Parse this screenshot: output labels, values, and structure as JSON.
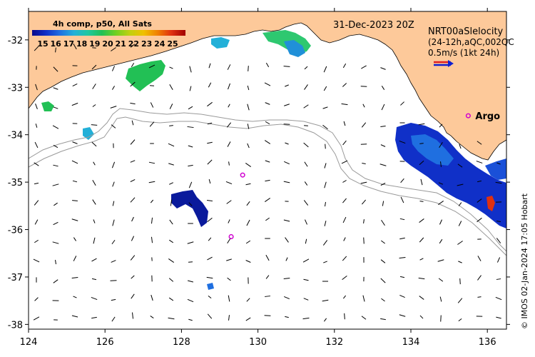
{
  "map": {
    "date_label": "31-Dec-2023 20Z",
    "legend_title": "4h comp, p50, All Sats",
    "legend_ticks": [
      "15",
      "16",
      "17",
      "18",
      "19",
      "20",
      "21",
      "22",
      "23",
      "24",
      "25"
    ],
    "product_label_a": "NRT00aSlelocity",
    "product_label_b": "(24-12h,aQC,002QC",
    "scale_label": "0.5m/s (1kt 24h)",
    "argo_label": "Argo",
    "credit": "© IMOS 02-Jan-2024 17:05 Hobart",
    "lat_ticks": [
      -32,
      -33,
      -34,
      -35,
      -36,
      -37,
      -38
    ],
    "lon_ticks": [
      124,
      126,
      128,
      130,
      132,
      134,
      136
    ],
    "lon_range": [
      124,
      136.5
    ],
    "lat_range": [
      -38.1,
      -31.4
    ],
    "argo_floats": [
      {
        "lon": 135.5,
        "lat": -33.6
      },
      {
        "lon": 129.6,
        "lat": -34.85
      },
      {
        "lon": 129.3,
        "lat": -36.15
      }
    ],
    "colors": {
      "land": "#fdc99a",
      "ocean": "#ffffff",
      "depth_contour": "#9a9a9a",
      "argo_marker": "#d000d0",
      "arrow": "#000000",
      "scale_arrow_red": "#e02020",
      "scale_arrow_blue": "#1020d0"
    },
    "colorbar": [
      "#0a0a8c",
      "#1030c8",
      "#1f6fe0",
      "#23b0d8",
      "#20c8a0",
      "#22c055",
      "#70d020",
      "#c0d010",
      "#f0c000",
      "#f08000",
      "#e03010",
      "#a00000"
    ]
  }
}
